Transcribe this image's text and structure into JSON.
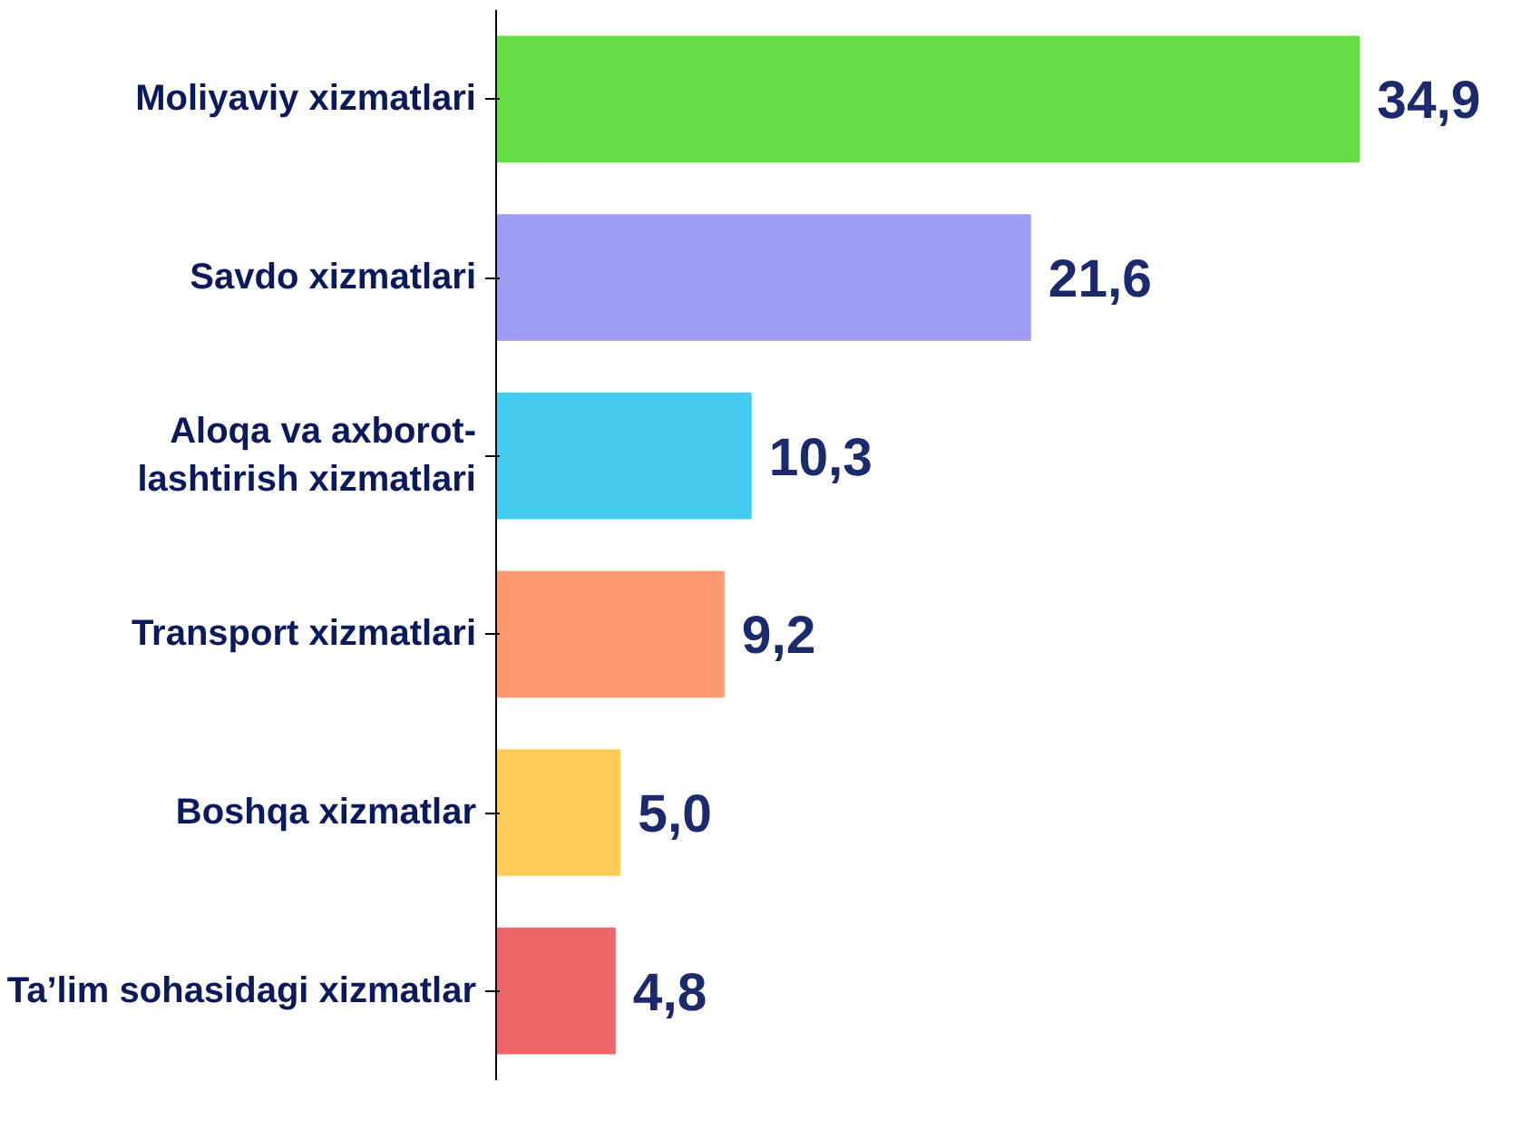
{
  "chart_data": {
    "type": "bar",
    "orientation": "horizontal",
    "categories": [
      "Moliyaviy xizmatlari",
      "Savdo xizmatlari",
      "Aloqa va axborot-\nlashtirish xizmatlari",
      "Transport xizmatlari",
      "Boshqa xizmatlar",
      "Ta’lim sohasidagi xizmatlar"
    ],
    "values": [
      34.9,
      21.6,
      10.3,
      9.2,
      5.0,
      4.8
    ],
    "value_labels": [
      "34,9",
      "21,6",
      "10,3",
      "9,2",
      "5,0",
      "4,8"
    ],
    "colors": [
      "#66dd44",
      "#9c9cf0",
      "#44ccf0",
      "#ff9a70",
      "#ffcc55",
      "#ee6668"
    ]
  }
}
